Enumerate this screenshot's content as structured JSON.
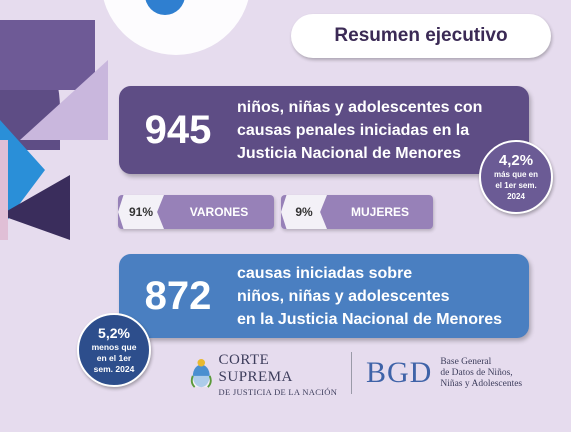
{
  "header": {
    "title": "Resumen ejecutivo"
  },
  "stat_causas_penales": {
    "value": "945",
    "description_lines": [
      "niños, niñas y adolescentes con",
      "causas penales iniciadas en la",
      "Justicia Nacional de Menores"
    ],
    "change_badge": {
      "percent": "4,2%",
      "lines": [
        "más que en",
        "el 1er sem.",
        "2024"
      ]
    }
  },
  "breakdown": {
    "varones": {
      "percent": "91%",
      "label": "VARONES"
    },
    "mujeres": {
      "percent": "9%",
      "label": "MUJERES"
    }
  },
  "stat_causas_iniciadas": {
    "value": "872",
    "description_lines": [
      "causas iniciadas sobre",
      "niños, niñas y adolescentes",
      "en la Justicia Nacional de Menores"
    ],
    "change_badge": {
      "percent": "5,2%",
      "lines": [
        "menos que",
        "en el 1er",
        "sem. 2024"
      ]
    }
  },
  "footer": {
    "logo_corte": {
      "main": "CORTE SUPREMA",
      "sub": "DE JUSTICIA DE LA NACIÓN"
    },
    "logo_bgd": {
      "mark": "BGD",
      "lines": [
        "Base General",
        "de Datos de Niños,",
        "Niñas y Adolescentes"
      ]
    }
  },
  "colors": {
    "background": "#e6dcee",
    "card_purple": "#5e4d85",
    "card_blue": "#4a7fc1",
    "chip": "#9781b8",
    "badge_dark_blue": "#2d4e8c"
  }
}
